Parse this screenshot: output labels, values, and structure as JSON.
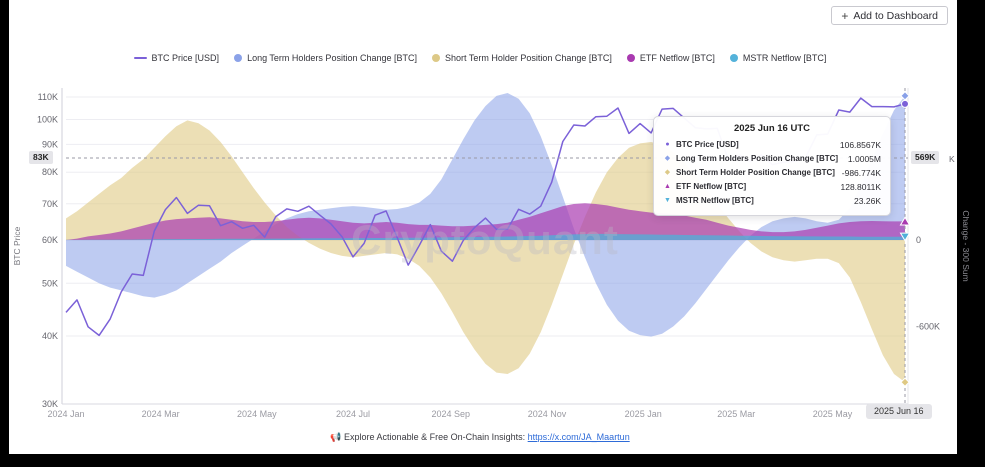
{
  "header": {
    "plus_icon": "+",
    "add_to_dashboard": "Add to Dashboard"
  },
  "page": {
    "watermark": "CryptoQuant"
  },
  "footer": {
    "icon": "📢",
    "text": "Explore Actionable & Free On-Chain Insights:",
    "link": "https://x.com/JA_Maartun"
  },
  "legend": [
    {
      "label": "BTC Price [USD]",
      "color": "#7b61d8",
      "marker": "line"
    },
    {
      "label": "Long Term Holders Position Change [BTC]",
      "color": "#8ba2e8",
      "marker": "dot"
    },
    {
      "label": "Short Term Holder Position Change [BTC]",
      "color": "#ddc987",
      "marker": "dot"
    },
    {
      "label": "ETF Netflow [BTC]",
      "color": "#a93ab0",
      "marker": "dot"
    },
    {
      "label": "MSTR Netflow [BTC]",
      "color": "#54b2da",
      "marker": "dot"
    }
  ],
  "tooltip": {
    "title": "2025 Jun 16 UTC",
    "rows": [
      {
        "marker": "circle",
        "color": "#7b61d8",
        "label": "BTC Price [USD]",
        "value": "106.8567K"
      },
      {
        "marker": "diamond",
        "color": "#8ba2e8",
        "label": "Long Term Holders Position Change [BTC]",
        "value": "1.0005M"
      },
      {
        "marker": "diamond",
        "color": "#ddc987",
        "label": "Short Term Holder Position Change [BTC]",
        "value": "-986.774K"
      },
      {
        "marker": "triangle-up",
        "color": "#a93ab0",
        "label": "ETF Netflow [BTC]",
        "value": "128.8011K"
      },
      {
        "marker": "triangle-down",
        "color": "#54b2da",
        "label": "MSTR Netflow [BTC]",
        "value": "23.26K"
      }
    ]
  },
  "axes": {
    "left_title": "BTC Price",
    "right_title": "Change - 300 Sum",
    "left_ticks": [
      {
        "label": "30K",
        "value": 30
      },
      {
        "label": "40K",
        "value": 40
      },
      {
        "label": "50K",
        "value": 50
      },
      {
        "label": "60K",
        "value": 60
      },
      {
        "label": "70K",
        "value": 70
      },
      {
        "label": "80K",
        "value": 80
      },
      {
        "label": "90K",
        "value": 90
      },
      {
        "label": "100K",
        "value": 100
      },
      {
        "label": "110K",
        "value": 110
      }
    ],
    "right_ticks": [
      {
        "label": "0",
        "value": 0
      },
      {
        "label": "-600K",
        "value": -600
      }
    ],
    "right_partial_tick": "K",
    "crosshair": {
      "price_label": "83K",
      "change_label": "569K",
      "change_value": 569
    },
    "x_ticks": [
      {
        "label": "2024 Jan",
        "day": 0
      },
      {
        "label": "2024 Mar",
        "day": 60
      },
      {
        "label": "2024 May",
        "day": 121
      },
      {
        "label": "2024 Jul",
        "day": 182
      },
      {
        "label": "2024 Sep",
        "day": 244
      },
      {
        "label": "2024 Nov",
        "day": 305
      },
      {
        "label": "2025 Jan",
        "day": 366
      },
      {
        "label": "2025 Mar",
        "day": 425
      },
      {
        "label": "2025 May",
        "day": 486
      }
    ],
    "current_date_label": "2025 Jun 16"
  },
  "chart_data": {
    "type": "mixed",
    "x_start": "2024-01-01",
    "x_end": "2025-06-16",
    "x_count": 77,
    "x_interval_days": 7,
    "price_axis": {
      "scale": "log",
      "min": 30,
      "max": 110,
      "unit": "K USD"
    },
    "change_axis": {
      "scale": "linear",
      "zero": 0,
      "unit": "K BTC",
      "visible_ticks": [
        600,
        0,
        -600
      ]
    },
    "series": [
      {
        "name": "Long Term Holders Position Change [BTC]",
        "type": "area",
        "color": "#88a0e8",
        "opacity": 0.55,
        "marker": "diamond",
        "values": [
          -180,
          -220,
          -260,
          -300,
          -330,
          -350,
          -370,
          -390,
          -400,
          -380,
          -350,
          -300,
          -250,
          -200,
          -150,
          -90,
          -40,
          10,
          60,
          110,
          150,
          180,
          200,
          210,
          220,
          230,
          235,
          230,
          220,
          210,
          215,
          230,
          260,
          320,
          420,
          560,
          700,
          830,
          930,
          1000,
          1020,
          980,
          880,
          720,
          520,
          300,
          80,
          -120,
          -300,
          -450,
          -560,
          -630,
          -660,
          -670,
          -650,
          -600,
          -530,
          -440,
          -340,
          -240,
          -140,
          -50,
          30,
          90,
          130,
          150,
          160,
          150,
          130,
          120,
          140,
          220,
          380,
          560,
          740,
          900,
          1000.5
        ]
      },
      {
        "name": "Short Term Holder Position Change [BTC]",
        "type": "area",
        "color": "#dfc983",
        "opacity": 0.6,
        "marker": "diamond",
        "values": [
          150,
          200,
          260,
          320,
          380,
          430,
          500,
          560,
          640,
          720,
          790,
          830,
          810,
          760,
          680,
          580,
          470,
          360,
          260,
          170,
          90,
          30,
          -20,
          -60,
          -90,
          -110,
          -120,
          -110,
          -100,
          -90,
          -100,
          -130,
          -180,
          -260,
          -370,
          -500,
          -640,
          -760,
          -860,
          -920,
          -930,
          -890,
          -790,
          -640,
          -450,
          -240,
          -30,
          160,
          330,
          470,
          570,
          640,
          670,
          680,
          660,
          610,
          540,
          450,
          350,
          250,
          150,
          60,
          -20,
          -80,
          -120,
          -140,
          -150,
          -140,
          -130,
          -130,
          -160,
          -260,
          -430,
          -620,
          -800,
          -930,
          -986.77
        ]
      },
      {
        "name": "ETF Netflow [BTC]",
        "type": "area",
        "color": "#a93ab0",
        "opacity": 0.7,
        "marker": "triangle-up",
        "values": [
          0,
          10,
          25,
          35,
          45,
          60,
          80,
          100,
          120,
          135,
          145,
          150,
          155,
          158,
          150,
          140,
          130,
          125,
          125,
          130,
          140,
          150,
          155,
          150,
          140,
          130,
          120,
          115,
          120,
          125,
          120,
          110,
          105,
          105,
          100,
          95,
          95,
          100,
          105,
          110,
          120,
          140,
          160,
          185,
          210,
          235,
          250,
          255,
          250,
          240,
          225,
          210,
          200,
          190,
          185,
          180,
          170,
          155,
          140,
          120,
          100,
          85,
          70,
          60,
          55,
          55,
          60,
          70,
          85,
          100,
          115,
          125,
          130,
          132,
          130,
          129,
          128.8
        ]
      },
      {
        "name": "MSTR Netflow [BTC]",
        "type": "area",
        "color": "#4fb0d8",
        "opacity": 0.75,
        "marker": "triangle-down",
        "values": [
          1,
          1,
          2,
          2,
          2,
          3,
          3,
          4,
          5,
          6,
          6,
          7,
          7,
          7,
          8,
          8,
          8,
          9,
          9,
          10,
          10,
          11,
          11,
          12,
          12,
          12,
          13,
          13,
          14,
          14,
          15,
          15,
          16,
          17,
          18,
          19,
          20,
          21,
          22,
          23,
          24,
          26,
          28,
          30,
          33,
          36,
          39,
          41,
          42,
          42,
          41,
          40,
          39,
          38,
          37,
          36,
          35,
          34,
          33,
          32,
          31,
          30,
          29,
          28,
          27,
          26,
          26,
          25,
          25,
          24,
          24,
          24,
          23,
          23,
          23,
          23,
          23.26
        ]
      },
      {
        "name": "BTC Price [USD]",
        "type": "line",
        "color": "#7b61d8",
        "marker": "circle",
        "values": [
          44.2,
          46.6,
          41.6,
          40.1,
          43,
          48.2,
          52,
          51.7,
          62.4,
          68.3,
          71.9,
          67.2,
          69.6,
          69.4,
          63.8,
          64.9,
          63.1,
          63.9,
          60.8,
          66.3,
          68.5,
          67.8,
          69.3,
          66.7,
          64.3,
          60.9,
          55.9,
          59.2,
          66.7,
          67.9,
          60.7,
          54,
          58.7,
          64.1,
          57.3,
          54.9,
          60,
          63.3,
          65.9,
          62.8,
          62.9,
          68.4,
          67,
          69.3,
          76.7,
          91.1,
          97.7,
          97.3,
          101.2,
          101.4,
          105,
          94.3,
          98.3,
          94.5,
          104.5,
          104.8,
          100.6,
          96.6,
          96.1,
          96.3,
          84.4,
          86,
          83.8,
          86.1,
          82.6,
          83.5,
          83.8,
          85.2,
          93.7,
          94,
          104.1,
          103.2,
          109.5,
          105.6,
          105.6,
          105.5,
          106.86
        ]
      }
    ]
  }
}
